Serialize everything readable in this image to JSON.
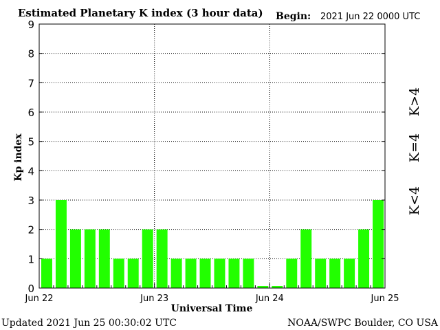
{
  "header": {
    "title": "Estimated Planetary K index (3 hour data)",
    "begin_label": "Begin:",
    "begin_value": "2021 Jun 22 0000 UTC"
  },
  "footer": {
    "updated": "Updated 2021 Jun 25 00:30:02 UTC",
    "credit": "NOAA/SWPC Boulder, CO USA"
  },
  "legend": [
    {
      "label": "K>4",
      "color": "#ff2200"
    },
    {
      "label": "K=4",
      "color": "#ffd700"
    },
    {
      "label": "K<4",
      "color": "#22ff00"
    }
  ],
  "chart_data": {
    "type": "bar",
    "title": "Estimated Planetary K index (3 hour data)",
    "xlabel": "Universal Time",
    "ylabel": "Kp index",
    "ylim": [
      0,
      9
    ],
    "yticks": [
      "0",
      "1",
      "2",
      "3",
      "4",
      "5",
      "6",
      "7",
      "8",
      "9"
    ],
    "xtick_labels": [
      "Jun 22",
      "Jun 23",
      "Jun 24",
      "Jun 25"
    ],
    "grid": true,
    "bar_color": "#22ff00",
    "values": [
      1,
      3,
      2,
      2,
      2,
      1,
      1,
      2,
      2,
      1,
      1,
      1,
      1,
      1,
      1,
      0.07,
      0.07,
      1,
      2,
      1,
      1,
      1,
      2,
      3
    ]
  }
}
